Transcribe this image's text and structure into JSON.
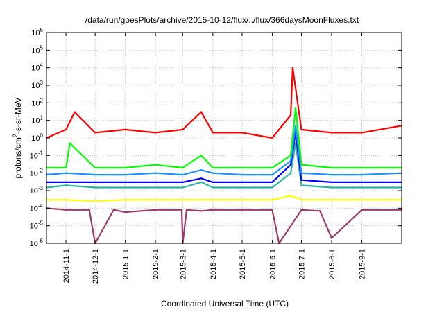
{
  "chart_data": {
    "type": "line",
    "title": "/data/run/goesPlots/archive/2015-10-12/flux/../flux/366daysMoonFluxes.txt",
    "xlabel": "Coordinated Universal Time (UTC)",
    "ylabel": {
      "before": "protons/cm",
      "sup": "2",
      "after": "-s-sr-MeV"
    },
    "y_scale": "log",
    "ylim": [
      "1e-6",
      "1e6"
    ],
    "xlim": [
      "2014-10-12",
      "2015-10-12"
    ],
    "grid": true,
    "y_ticks": [
      {
        "value": 1e-06,
        "base": "10",
        "exp": "-6"
      },
      {
        "value": 1e-05,
        "base": "10",
        "exp": "-5"
      },
      {
        "value": 0.0001,
        "base": "10",
        "exp": "-4"
      },
      {
        "value": 0.001,
        "base": "10",
        "exp": "-3"
      },
      {
        "value": 0.01,
        "base": "10",
        "exp": "-2"
      },
      {
        "value": 0.1,
        "base": "10",
        "exp": "-1"
      },
      {
        "value": 1.0,
        "base": "10",
        "exp": "0"
      },
      {
        "value": 10.0,
        "base": "10",
        "exp": "1"
      },
      {
        "value": 100.0,
        "base": "10",
        "exp": "2"
      },
      {
        "value": 1000.0,
        "base": "10",
        "exp": "3"
      },
      {
        "value": 10000.0,
        "base": "10",
        "exp": "4"
      },
      {
        "value": 100000.0,
        "base": "10",
        "exp": "5"
      },
      {
        "value": 1000000.0,
        "base": "10",
        "exp": "6"
      }
    ],
    "x_ticks": [
      {
        "date": "2014-11-01",
        "label": "2014-11-1"
      },
      {
        "date": "2014-12-01",
        "label": "2014-12-1"
      },
      {
        "date": "2015-01-01",
        "label": "2015-1-1"
      },
      {
        "date": "2015-02-01",
        "label": "2015-2-1"
      },
      {
        "date": "2015-03-01",
        "label": "2015-3-1"
      },
      {
        "date": "2015-04-01",
        "label": "2015-4-1"
      },
      {
        "date": "2015-05-01",
        "label": "2015-5-1"
      },
      {
        "date": "2015-06-01",
        "label": "2015-6-1"
      },
      {
        "date": "2015-07-01",
        "label": "2015-7-1"
      },
      {
        "date": "2015-08-01",
        "label": "2015-8-1"
      },
      {
        "date": "2015-09-01",
        "label": "2015-9-1"
      }
    ],
    "series": [
      {
        "color": "#9a3a6a",
        "x": [
          "2014-10-12",
          "2014-11-01",
          "2014-11-25",
          "2014-12-01",
          "2014-12-20",
          "2015-01-01",
          "2015-02-01",
          "2015-02-28",
          "2015-03-01",
          "2015-03-05",
          "2015-03-20",
          "2015-04-01",
          "2015-05-01",
          "2015-06-01",
          "2015-06-08",
          "2015-07-01",
          "2015-07-20",
          "2015-08-01",
          "2015-09-01",
          "2015-10-12"
        ],
        "y": [
          0.0001,
          8e-05,
          8e-05,
          1e-06,
          8e-05,
          6e-05,
          8e-05,
          8e-05,
          1e-06,
          8e-05,
          7e-05,
          8e-05,
          8e-05,
          8e-05,
          1e-06,
          8e-05,
          7e-05,
          2e-06,
          8e-05,
          8e-05
        ]
      },
      {
        "color": "#ffff00",
        "x": [
          "2014-10-12",
          "2014-11-01",
          "2014-12-01",
          "2015-01-01",
          "2015-02-01",
          "2015-03-01",
          "2015-04-01",
          "2015-05-01",
          "2015-06-01",
          "2015-06-20",
          "2015-07-01",
          "2015-08-01",
          "2015-09-01",
          "2015-10-12"
        ],
        "y": [
          0.0003,
          0.0003,
          0.00025,
          0.0003,
          0.0003,
          0.0003,
          0.0003,
          0.0003,
          0.0003,
          0.0005,
          0.0003,
          0.0003,
          0.0003,
          0.0003
        ]
      },
      {
        "color": "#2ab5a0",
        "x": [
          "2014-10-12",
          "2014-11-01",
          "2014-12-01",
          "2015-01-01",
          "2015-02-01",
          "2015-03-01",
          "2015-03-20",
          "2015-04-01",
          "2015-05-01",
          "2015-06-01",
          "2015-06-20",
          "2015-06-25",
          "2015-07-01",
          "2015-08-01",
          "2015-09-01",
          "2015-10-12"
        ],
        "y": [
          0.0015,
          0.002,
          0.0015,
          0.0015,
          0.0015,
          0.0015,
          0.003,
          0.0015,
          0.0015,
          0.0015,
          0.01,
          0.5,
          0.002,
          0.0015,
          0.0015,
          0.0015
        ]
      },
      {
        "color": "#0000ff",
        "x": [
          "2014-10-12",
          "2014-11-01",
          "2014-12-01",
          "2015-01-01",
          "2015-02-01",
          "2015-03-01",
          "2015-03-20",
          "2015-04-01",
          "2015-05-01",
          "2015-06-01",
          "2015-06-20",
          "2015-06-25",
          "2015-07-01",
          "2015-08-01",
          "2015-09-01",
          "2015-10-12"
        ],
        "y": [
          0.003,
          0.003,
          0.003,
          0.003,
          0.003,
          0.003,
          0.005,
          0.003,
          0.003,
          0.003,
          0.03,
          2,
          0.004,
          0.003,
          0.003,
          0.003
        ]
      },
      {
        "color": "#1e90ff",
        "x": [
          "2014-10-12",
          "2014-11-01",
          "2014-12-01",
          "2015-01-01",
          "2015-02-01",
          "2015-03-01",
          "2015-03-20",
          "2015-04-01",
          "2015-05-01",
          "2015-06-01",
          "2015-06-20",
          "2015-06-25",
          "2015-07-01",
          "2015-08-01",
          "2015-09-01",
          "2015-10-12"
        ],
        "y": [
          0.008,
          0.01,
          0.008,
          0.008,
          0.01,
          0.008,
          0.015,
          0.01,
          0.008,
          0.008,
          0.05,
          5,
          0.01,
          0.008,
          0.008,
          0.01
        ]
      },
      {
        "color": "#00ff00",
        "x": [
          "2014-10-12",
          "2014-11-01",
          "2014-11-05",
          "2014-12-01",
          "2015-01-01",
          "2015-02-01",
          "2015-03-01",
          "2015-03-20",
          "2015-04-01",
          "2015-05-01",
          "2015-06-01",
          "2015-06-20",
          "2015-06-25",
          "2015-07-01",
          "2015-08-01",
          "2015-09-01",
          "2015-10-12"
        ],
        "y": [
          0.02,
          0.02,
          0.5,
          0.02,
          0.02,
          0.03,
          0.02,
          0.1,
          0.02,
          0.02,
          0.02,
          0.1,
          50,
          0.03,
          0.02,
          0.02,
          0.02
        ]
      },
      {
        "color": "#ff0000",
        "x": [
          "2014-10-12",
          "2014-11-01",
          "2014-11-10",
          "2014-12-01",
          "2015-01-01",
          "2015-02-01",
          "2015-03-01",
          "2015-03-20",
          "2015-04-01",
          "2015-05-01",
          "2015-06-01",
          "2015-06-20",
          "2015-06-22",
          "2015-07-01",
          "2015-08-01",
          "2015-09-01",
          "2015-10-12"
        ],
        "y": [
          1,
          3,
          30,
          2,
          3,
          2,
          3,
          30,
          2,
          2,
          1,
          20,
          10000,
          3,
          2,
          2,
          5
        ]
      }
    ]
  }
}
